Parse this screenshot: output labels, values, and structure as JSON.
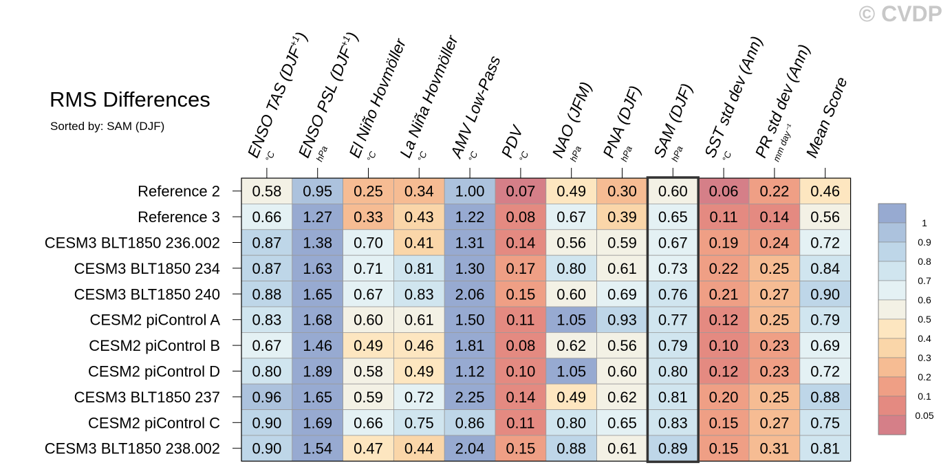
{
  "watermark": "© CVDP",
  "chart_data": {
    "type": "heatmap",
    "title": "RMS Differences",
    "subtitle": "Sorted by: SAM (DJF)",
    "highlight_column": "SAM (DJF)",
    "columns": [
      {
        "label": "ENSO TAS (DJF",
        "sup": "+1",
        "close": ")",
        "unit": "°C"
      },
      {
        "label": "ENSO PSL (DJF",
        "sup": "+1",
        "close": ")",
        "unit": "hPa"
      },
      {
        "label": "El Niño Hovmöller",
        "sup": "",
        "close": "",
        "unit": "°C"
      },
      {
        "label": "La Niña Hovmöller",
        "sup": "",
        "close": "",
        "unit": "°C"
      },
      {
        "label": "AMV Low-Pass",
        "sup": "",
        "close": "",
        "unit": "°C"
      },
      {
        "label": "PDV",
        "sup": "",
        "close": "",
        "unit": "°C"
      },
      {
        "label": "NAO (JFM)",
        "sup": "",
        "close": "",
        "unit": "hPa"
      },
      {
        "label": "PNA (DJF)",
        "sup": "",
        "close": "",
        "unit": "hPa"
      },
      {
        "label": "SAM (DJF)",
        "sup": "",
        "close": "",
        "unit": "hPa"
      },
      {
        "label": "SST std dev (Ann)",
        "sup": "",
        "close": "",
        "unit": "°C"
      },
      {
        "label": "PR std dev (Ann)",
        "sup": "",
        "close": "",
        "unit": "mm day⁻¹"
      },
      {
        "label": "Mean Score",
        "sup": "",
        "close": "",
        "unit": ""
      }
    ],
    "rows": [
      "Reference 2",
      "Reference 3",
      "CESM3 BLT1850 236.002",
      "CESM3 BLT1850 234",
      "CESM3 BLT1850 240",
      "CESM2 piControl A",
      "CESM2 piControl B",
      "CESM2 piControl D",
      "CESM3 BLT1850 237",
      "CESM2 piControl C",
      "CESM3 BLT1850 238.002"
    ],
    "values": [
      [
        0.58,
        0.95,
        0.25,
        0.34,
        1.0,
        0.07,
        0.49,
        0.3,
        0.6,
        0.06,
        0.22,
        0.46
      ],
      [
        0.66,
        1.27,
        0.33,
        0.43,
        1.22,
        0.08,
        0.67,
        0.39,
        0.65,
        0.11,
        0.14,
        0.56
      ],
      [
        0.87,
        1.38,
        0.7,
        0.41,
        1.31,
        0.14,
        0.56,
        0.59,
        0.67,
        0.19,
        0.24,
        0.72
      ],
      [
        0.87,
        1.63,
        0.71,
        0.81,
        1.3,
        0.17,
        0.8,
        0.61,
        0.73,
        0.22,
        0.25,
        0.84
      ],
      [
        0.88,
        1.65,
        0.67,
        0.83,
        2.06,
        0.15,
        0.6,
        0.69,
        0.76,
        0.21,
        0.27,
        0.9
      ],
      [
        0.83,
        1.68,
        0.6,
        0.61,
        1.5,
        0.11,
        1.05,
        0.93,
        0.77,
        0.12,
        0.25,
        0.79
      ],
      [
        0.67,
        1.46,
        0.49,
        0.46,
        1.81,
        0.08,
        0.62,
        0.56,
        0.79,
        0.1,
        0.23,
        0.69
      ],
      [
        0.8,
        1.89,
        0.58,
        0.49,
        1.12,
        0.1,
        1.05,
        0.6,
        0.8,
        0.12,
        0.23,
        0.72
      ],
      [
        0.96,
        1.65,
        0.59,
        0.72,
        2.25,
        0.14,
        0.49,
        0.62,
        0.81,
        0.2,
        0.25,
        0.88
      ],
      [
        0.9,
        1.69,
        0.66,
        0.75,
        0.86,
        0.11,
        0.8,
        0.65,
        0.83,
        0.15,
        0.27,
        0.75
      ],
      [
        0.9,
        1.54,
        0.47,
        0.44,
        2.04,
        0.15,
        0.88,
        0.61,
        0.89,
        0.15,
        0.31,
        0.81
      ]
    ],
    "legend": {
      "labels": [
        "1",
        "0.9",
        "0.8",
        "0.7",
        "0.6",
        "0.5",
        "0.4",
        "0.3",
        "0.2",
        "0.1",
        "0.05"
      ],
      "bins": [
        1.05,
        0.95,
        0.85,
        0.75,
        0.65,
        0.55,
        0.45,
        0.35,
        0.25,
        0.15,
        0.075,
        0.02
      ],
      "colors": [
        "#97aad1",
        "#acc2dd",
        "#bed6e8",
        "#d0e5ef",
        "#e4f1f4",
        "#f3f1e5",
        "#fde6c0",
        "#fad6a9",
        "#f6bc93",
        "#ef9f85",
        "#e48a81",
        "#d57f88"
      ]
    }
  }
}
